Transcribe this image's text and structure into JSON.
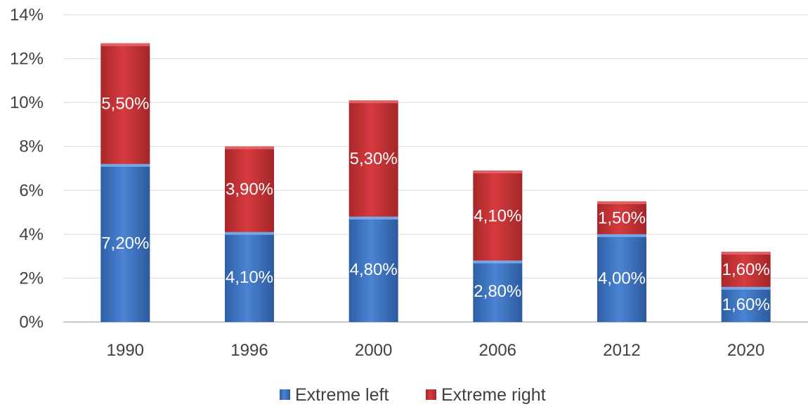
{
  "chart_data": {
    "type": "bar",
    "stacked": true,
    "categories": [
      "1990",
      "1996",
      "2000",
      "2006",
      "2012",
      "2020"
    ],
    "series": [
      {
        "name": "Extreme left",
        "values": [
          7.2,
          4.1,
          4.8,
          2.8,
          4.0,
          1.6
        ],
        "labels": [
          "7,20%",
          "4,10%",
          "4,80%",
          "2,80%",
          "4,00%",
          "1,60%"
        ],
        "color": "#3f75c4"
      },
      {
        "name": "Extreme right",
        "values": [
          5.5,
          3.9,
          5.3,
          4.1,
          1.5,
          1.6
        ],
        "labels": [
          "5,50%",
          "3,90%",
          "5,30%",
          "4,10%",
          "1,50%",
          "1,60%"
        ],
        "color": "#c53336"
      }
    ],
    "y_ticks": [
      "0%",
      "2%",
      "4%",
      "6%",
      "8%",
      "10%",
      "12%",
      "14%"
    ],
    "ylim": [
      0,
      14
    ],
    "grid": true,
    "legend_position": "bottom"
  }
}
